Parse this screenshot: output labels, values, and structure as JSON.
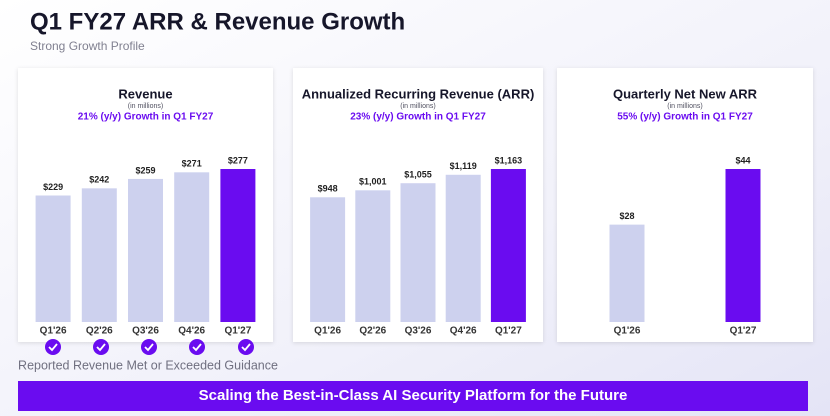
{
  "title": "Q1 FY27 ARR & Revenue Growth",
  "subtitle": "Strong Growth Profile",
  "note": "Reported Revenue Met or Exceeded Guidance",
  "banner": "Scaling the Best-in-Class AI Security Platform for the Future",
  "chart_data": [
    {
      "type": "bar",
      "title": "Revenue",
      "subtitle": "(in millions)",
      "annotation": "21% (y/y) Growth in Q1 FY27",
      "categories": [
        "Q1'26",
        "Q2'26",
        "Q3'26",
        "Q4'26",
        "Q1'27"
      ],
      "values": [
        229,
        242,
        259,
        271,
        277
      ],
      "value_labels": [
        "$229",
        "$242",
        "$259",
        "$271",
        "$277"
      ],
      "colors": [
        "#cdd1ee",
        "#cdd1ee",
        "#cdd1ee",
        "#cdd1ee",
        "#6a0cf0"
      ]
    },
    {
      "type": "bar",
      "title": "Annualized Recurring Revenue (ARR)",
      "subtitle": "(in millions)",
      "annotation": "23% (y/y) Growth in Q1 FY27",
      "categories": [
        "Q1'26",
        "Q2'26",
        "Q3'26",
        "Q4'26",
        "Q1'27"
      ],
      "values": [
        948,
        1001,
        1055,
        1119,
        1163
      ],
      "value_labels": [
        "$948",
        "$1,001",
        "$1,055",
        "$1,119",
        "$1,163"
      ],
      "colors": [
        "#cdd1ee",
        "#cdd1ee",
        "#cdd1ee",
        "#cdd1ee",
        "#6a0cf0"
      ]
    },
    {
      "type": "bar",
      "title": "Quarterly Net New ARR",
      "subtitle": "(in millions)",
      "annotation": "55% (y/y) Growth in Q1 FY27",
      "categories": [
        "Q1'26",
        "Q1'27"
      ],
      "values": [
        28,
        44
      ],
      "value_labels": [
        "$28",
        "$44"
      ],
      "colors": [
        "#cdd1ee",
        "#6a0cf0"
      ]
    }
  ]
}
